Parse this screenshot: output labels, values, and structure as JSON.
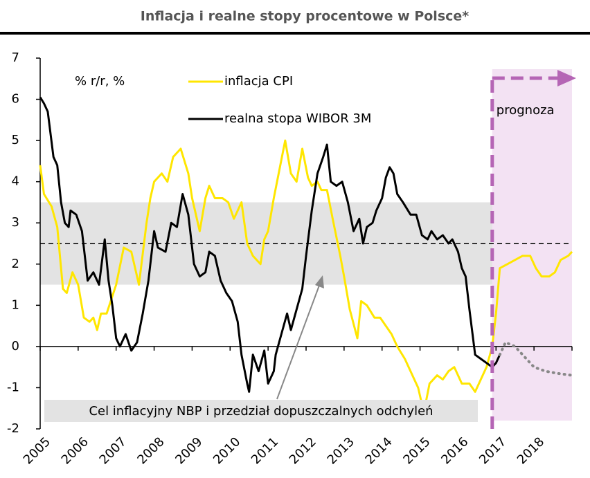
{
  "chart_data": {
    "type": "line",
    "title": "Inflacja i realne stopy procentowe w Polsce*",
    "unit_label": "% r/r, %",
    "annotation": "Cel inflacyjny NBP i przedział dopuszczalnych odchyleń",
    "forecast_label": "prognoza",
    "xlim": [
      2005,
      2019
    ],
    "xticks": [
      2005,
      2006,
      2007,
      2008,
      2009,
      2010,
      2011,
      2012,
      2013,
      2014,
      2015,
      2016,
      2017,
      2018
    ],
    "ylim": [
      -2,
      7
    ],
    "yticks": [
      -2,
      -1,
      0,
      1,
      2,
      3,
      4,
      5,
      6,
      7
    ],
    "target": 2.5,
    "target_band": [
      1.5,
      3.5
    ],
    "forecast_start": 2016.9,
    "series": [
      {
        "name": "inflacja CPI",
        "color": "#ffe600",
        "x": [
          2005.0,
          2005.1,
          2005.3,
          2005.45,
          2005.6,
          2005.7,
          2005.85,
          2006.0,
          2006.15,
          2006.3,
          2006.4,
          2006.5,
          2006.6,
          2006.75,
          2007.0,
          2007.2,
          2007.4,
          2007.6,
          2007.8,
          2007.9,
          2008.0,
          2008.2,
          2008.35,
          2008.5,
          2008.7,
          2008.9,
          2009.0,
          2009.2,
          2009.35,
          2009.45,
          2009.6,
          2009.8,
          2009.95,
          2010.1,
          2010.3,
          2010.45,
          2010.6,
          2010.8,
          2010.9,
          2011.0,
          2011.15,
          2011.3,
          2011.45,
          2011.6,
          2011.75,
          2011.9,
          2012.05,
          2012.15,
          2012.3,
          2012.4,
          2012.55,
          2012.7,
          2012.9,
          2013.0,
          2013.15,
          2013.35,
          2013.45,
          2013.6,
          2013.8,
          2013.95,
          2014.1,
          2014.25,
          2014.4,
          2014.6,
          2014.8,
          2014.95,
          2015.1,
          2015.25,
          2015.45,
          2015.6,
          2015.75,
          2015.9,
          2016.1,
          2016.3,
          2016.45,
          2016.6,
          2016.75,
          2016.9,
          2017.0,
          2017.1,
          2017.3,
          2017.5,
          2017.7,
          2017.9,
          2018.05,
          2018.2,
          2018.4,
          2018.55,
          2018.7,
          2018.9,
          2019.0
        ],
        "values": [
          4.4,
          3.7,
          3.4,
          2.9,
          1.4,
          1.3,
          1.8,
          1.5,
          0.7,
          0.6,
          0.7,
          0.4,
          0.8,
          0.8,
          1.5,
          2.4,
          2.3,
          1.5,
          3.0,
          3.6,
          4.0,
          4.2,
          4.0,
          4.6,
          4.8,
          4.2,
          3.6,
          2.8,
          3.6,
          3.9,
          3.6,
          3.6,
          3.5,
          3.1,
          3.5,
          2.5,
          2.2,
          2.0,
          2.6,
          2.8,
          3.6,
          4.3,
          5.0,
          4.2,
          4.0,
          4.8,
          4.1,
          3.9,
          4.0,
          3.8,
          3.8,
          3.1,
          2.2,
          1.7,
          0.9,
          0.2,
          1.1,
          1.0,
          0.7,
          0.7,
          0.5,
          0.3,
          0.0,
          -0.3,
          -0.7,
          -1.0,
          -1.6,
          -0.9,
          -0.7,
          -0.8,
          -0.6,
          -0.5,
          -0.9,
          -0.9,
          -1.1,
          -0.8,
          -0.5,
          0.0,
          0.8,
          1.9,
          2.0,
          2.1,
          2.2,
          2.2,
          1.9,
          1.7,
          1.7,
          1.8,
          2.1,
          2.2,
          2.3
        ]
      },
      {
        "name": "realna stopa WIBOR 3M",
        "color": "#000000",
        "x": [
          2005.0,
          2005.1,
          2005.2,
          2005.35,
          2005.45,
          2005.55,
          2005.65,
          2005.75,
          2005.8,
          2005.95,
          2006.1,
          2006.25,
          2006.4,
          2006.55,
          2006.7,
          2006.8,
          2006.9,
          2007.0,
          2007.1,
          2007.25,
          2007.4,
          2007.55,
          2007.7,
          2007.85,
          2008.0,
          2008.1,
          2008.3,
          2008.45,
          2008.6,
          2008.75,
          2008.9,
          2009.05,
          2009.2,
          2009.35,
          2009.45,
          2009.6,
          2009.75,
          2009.9,
          2010.05,
          2010.2,
          2010.3,
          2010.45,
          2010.5,
          2010.6,
          2010.75,
          2010.9,
          2011.0,
          2011.15,
          2011.2,
          2011.35,
          2011.5,
          2011.6,
          2011.75,
          2011.9,
          2012.0,
          2012.15,
          2012.3,
          2012.45,
          2012.55,
          2012.65,
          2012.8,
          2012.95,
          2013.1,
          2013.25,
          2013.4,
          2013.5,
          2013.6,
          2013.75,
          2013.85,
          2014.0,
          2014.1,
          2014.2,
          2014.3,
          2014.4,
          2014.55,
          2014.75,
          2014.9,
          2015.05,
          2015.2,
          2015.3,
          2015.45,
          2015.6,
          2015.75,
          2015.85,
          2016.0,
          2016.1,
          2016.2,
          2016.3,
          2016.45,
          2016.6,
          2016.75,
          2016.9,
          2017.0,
          2017.1
        ],
        "values": [
          6.05,
          5.9,
          5.7,
          4.6,
          4.4,
          3.5,
          3.0,
          2.9,
          3.3,
          3.2,
          2.8,
          1.6,
          1.8,
          1.5,
          2.6,
          1.6,
          1.0,
          0.2,
          0.0,
          0.3,
          -0.1,
          0.1,
          0.8,
          1.6,
          2.8,
          2.4,
          2.3,
          3.0,
          2.9,
          3.7,
          3.2,
          2.0,
          1.7,
          1.8,
          2.3,
          2.2,
          1.6,
          1.3,
          1.1,
          0.6,
          -0.2,
          -0.9,
          -1.1,
          -0.2,
          -0.6,
          -0.1,
          -0.9,
          -0.6,
          -0.2,
          0.3,
          0.8,
          0.4,
          0.9,
          1.4,
          2.2,
          3.3,
          4.2,
          4.6,
          4.9,
          4.0,
          3.9,
          4.0,
          3.5,
          2.8,
          3.1,
          2.5,
          2.9,
          3.0,
          3.3,
          3.6,
          4.1,
          4.35,
          4.2,
          3.7,
          3.5,
          3.2,
          3.2,
          2.7,
          2.6,
          2.8,
          2.6,
          2.7,
          2.5,
          2.6,
          2.3,
          1.9,
          1.7,
          0.9,
          -0.2,
          -0.3,
          -0.4,
          -0.5,
          -0.4,
          -0.2
        ]
      },
      {
        "color": "#888888",
        "style": "dotted",
        "x": [
          2017.1,
          2017.25,
          2017.5,
          2017.8,
          2018.0,
          2018.3,
          2018.6,
          2019.0
        ],
        "values": [
          -0.2,
          0.1,
          0.0,
          -0.3,
          -0.5,
          -0.6,
          -0.65,
          -0.7
        ]
      }
    ]
  }
}
